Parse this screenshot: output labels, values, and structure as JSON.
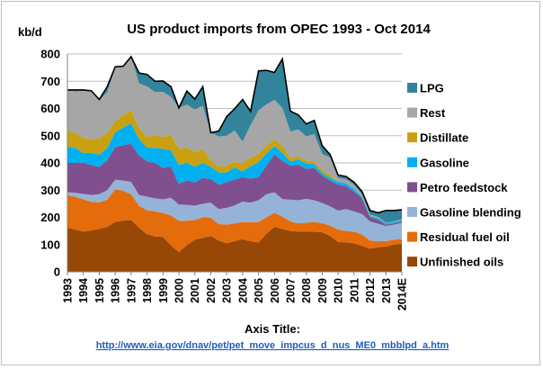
{
  "chart_data": {
    "type": "area",
    "stacked": true,
    "title": "US product imports from OPEC 1993 - Oct 2014",
    "unit_label": "kb/d",
    "xlabel": "Axis Title:",
    "source_url": "http://www.eia.gov/dnav/pet/pet_move_impcus_d_nus_ME0_mbblpd_a.htm",
    "ylim": [
      0,
      800
    ],
    "yticks": [
      0,
      100,
      200,
      300,
      400,
      500,
      600,
      700,
      800
    ],
    "grid": true,
    "legend_placement": "right",
    "category_labels": [
      "1993",
      "1994",
      "1995",
      "1996",
      "1997",
      "1998",
      "1999",
      "2000",
      "2001",
      "2002",
      "2003",
      "2004",
      "2005",
      "2006",
      "2007",
      "2008",
      "2009",
      "2010",
      "2011",
      "2012",
      "2013",
      "2014E"
    ],
    "x": [
      1993,
      1993.5,
      1994,
      1994.5,
      1995,
      1995.5,
      1996,
      1996.5,
      1997,
      1997.5,
      1998,
      1998.5,
      1999,
      1999.5,
      2000,
      2000.5,
      2001,
      2001.5,
      2002,
      2002.5,
      2003,
      2003.5,
      2004,
      2004.5,
      2005,
      2005.5,
      2006,
      2006.5,
      2007,
      2007.5,
      2008,
      2008.5,
      2009,
      2009.5,
      2010,
      2010.5,
      2011,
      2011.5,
      2012,
      2012.5,
      2013,
      2013.5,
      2014
    ],
    "series": [
      {
        "name": "Unfinished oils",
        "color": "#974806",
        "values": [
          162,
          155,
          148,
          152,
          158,
          165,
          183,
          188,
          190,
          162,
          138,
          130,
          128,
          97,
          72,
          98,
          118,
          125,
          132,
          115,
          105,
          113,
          120,
          112,
          108,
          140,
          165,
          157,
          150,
          148,
          147,
          148,
          145,
          132,
          110,
          108,
          105,
          95,
          85,
          90,
          93,
          100,
          103
        ]
      },
      {
        "name": "Residual fuel oil",
        "color": "#e46c0a",
        "values": [
          120,
          120,
          118,
          105,
          97,
          100,
          120,
          110,
          95,
          80,
          88,
          92,
          88,
          110,
          115,
          90,
          72,
          75,
          67,
          60,
          68,
          65,
          63,
          70,
          75,
          60,
          52,
          45,
          35,
          30,
          33,
          35,
          33,
          38,
          45,
          42,
          42,
          42,
          30,
          22,
          20,
          18,
          17
        ]
      },
      {
        "name": "Gasoline blending",
        "color": "#95b3d7",
        "values": [
          10,
          15,
          20,
          25,
          30,
          35,
          35,
          37,
          45,
          40,
          50,
          48,
          50,
          65,
          60,
          58,
          53,
          50,
          55,
          55,
          62,
          66,
          75,
          72,
          80,
          85,
          75,
          65,
          80,
          85,
          88,
          80,
          75,
          70,
          70,
          80,
          75,
          75,
          70,
          65,
          55,
          55,
          60
        ]
      },
      {
        "name": "Petro feedstock",
        "color": "#7f4f8f",
        "values": [
          108,
          110,
          115,
          110,
          100,
          110,
          120,
          130,
          140,
          145,
          130,
          130,
          115,
          115,
          75,
          90,
          85,
          95,
          87,
          90,
          95,
          95,
          90,
          88,
          85,
          105,
          140,
          140,
          125,
          130,
          110,
          118,
          100,
          95,
          95,
          85,
          72,
          58,
          15,
          15,
          5,
          5,
          5
        ]
      },
      {
        "name": "Gasoline",
        "color": "#00b0f0",
        "values": [
          60,
          55,
          35,
          45,
          45,
          45,
          55,
          65,
          75,
          60,
          50,
          55,
          70,
          60,
          70,
          65,
          58,
          55,
          45,
          45,
          35,
          45,
          20,
          45,
          55,
          45,
          30,
          30,
          15,
          20,
          20,
          15,
          10,
          10,
          10,
          10,
          10,
          5,
          5,
          5,
          5,
          5,
          5
        ]
      },
      {
        "name": "Distillate",
        "color": "#c9a011",
        "values": [
          60,
          55,
          55,
          50,
          60,
          55,
          40,
          45,
          50,
          40,
          40,
          45,
          45,
          55,
          60,
          55,
          55,
          50,
          25,
          20,
          25,
          20,
          30,
          32,
          30,
          30,
          25,
          25,
          15,
          10,
          10,
          10,
          10,
          10,
          0,
          0,
          0,
          0,
          0,
          0,
          0,
          0,
          0
        ]
      },
      {
        "name": "Rest",
        "color": "#a6a6a6",
        "values": [
          145,
          153,
          173,
          175,
          140,
          150,
          197,
          180,
          195,
          165,
          185,
          160,
          165,
          140,
          150,
          158,
          155,
          160,
          100,
          112,
          110,
          115,
          80,
          120,
          160,
          150,
          145,
          140,
          95,
          100,
          90,
          100,
          60,
          65,
          15,
          15,
          15,
          10,
          5,
          5,
          2,
          2,
          3
        ]
      },
      {
        "name": "LPG",
        "color": "#31849b",
        "values": [
          3,
          5,
          4,
          3,
          3,
          20,
          3,
          0,
          0,
          38,
          44,
          40,
          40,
          38,
          0,
          50,
          38,
          70,
          0,
          20,
          70,
          80,
          155,
          50,
          145,
          125,
          100,
          180,
          75,
          53,
          45,
          50,
          30,
          10,
          10,
          10,
          10,
          10,
          15,
          15,
          45,
          40,
          35
        ]
      }
    ]
  }
}
